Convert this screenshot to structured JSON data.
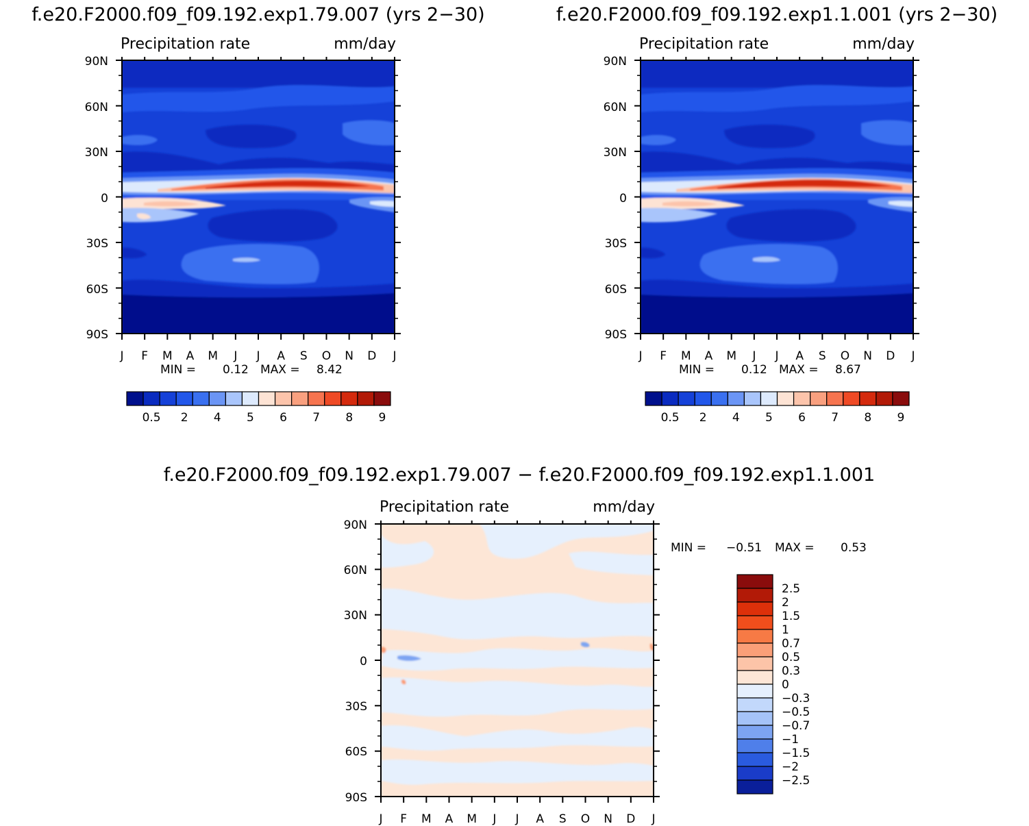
{
  "chart_data": [
    {
      "type": "heatmap",
      "title": "f.e20.F2000.f09_f09.192.exp1.79.007 (yrs 2−30)",
      "variable": "Precipitation rate",
      "units": "mm/day",
      "x_ticks": [
        "J",
        "F",
        "M",
        "A",
        "M",
        "J",
        "J",
        "A",
        "S",
        "O",
        "N",
        "D",
        "J"
      ],
      "y_ticks": [
        "90N",
        "60N",
        "30N",
        "0",
        "30S",
        "60S",
        "90S"
      ],
      "stats": {
        "min_label": "MIN =",
        "min": "0.12",
        "max_label": "MAX =",
        "max": "8.42"
      },
      "colorbar": {
        "orientation": "horizontal",
        "labels": [
          "0.5",
          "2",
          "4",
          "5",
          "6",
          "7",
          "8",
          "9"
        ],
        "colors": [
          "#00108c",
          "#0a2bc0",
          "#1541d8",
          "#2257ea",
          "#3a70f0",
          "#6b95f5",
          "#a9c5fb",
          "#ddeafd",
          "#fde3d4",
          "#fcc4ab",
          "#f9a07f",
          "#f6744f",
          "#ef4a25",
          "#d42a0d",
          "#b21a07",
          "#8a0c0c"
        ]
      }
    },
    {
      "type": "heatmap",
      "title": "f.e20.F2000.f09_f09.192.exp1.1.001 (yrs 2−30)",
      "variable": "Precipitation rate",
      "units": "mm/day",
      "x_ticks": [
        "J",
        "F",
        "M",
        "A",
        "M",
        "J",
        "J",
        "A",
        "S",
        "O",
        "N",
        "D",
        "J"
      ],
      "y_ticks": [
        "90N",
        "60N",
        "30N",
        "0",
        "30S",
        "60S",
        "90S"
      ],
      "stats": {
        "min_label": "MIN =",
        "min": "0.12",
        "max_label": "MAX =",
        "max": "8.67"
      },
      "colorbar": {
        "orientation": "horizontal",
        "labels": [
          "0.5",
          "2",
          "4",
          "5",
          "6",
          "7",
          "8",
          "9"
        ],
        "colors": [
          "#00108c",
          "#0a2bc0",
          "#1541d8",
          "#2257ea",
          "#3a70f0",
          "#6b95f5",
          "#a9c5fb",
          "#ddeafd",
          "#fde3d4",
          "#fcc4ab",
          "#f9a07f",
          "#f6744f",
          "#ef4a25",
          "#d42a0d",
          "#b21a07",
          "#8a0c0c"
        ]
      }
    },
    {
      "type": "heatmap",
      "title": "f.e20.F2000.f09_f09.192.exp1.79.007 − f.e20.F2000.f09_f09.192.exp1.1.001",
      "variable": "Precipitation rate",
      "units": "mm/day",
      "x_ticks": [
        "J",
        "F",
        "M",
        "A",
        "M",
        "J",
        "J",
        "A",
        "S",
        "O",
        "N",
        "D",
        "J"
      ],
      "y_ticks": [
        "90N",
        "60N",
        "30N",
        "0",
        "30S",
        "60S",
        "90S"
      ],
      "stats": {
        "min_label": "MIN =",
        "min": "−0.51",
        "max_label": "MAX =",
        "max": "0.53"
      },
      "colorbar": {
        "orientation": "vertical",
        "labels": [
          "2.5",
          "2",
          "1.5",
          "1",
          "0.7",
          "0.5",
          "0.3",
          "0",
          "−0.3",
          "−0.5",
          "−0.7",
          "−1",
          "−1.5",
          "−2",
          "−2.5"
        ],
        "colors": [
          "#8a0c0c",
          "#b21a07",
          "#dd300a",
          "#f04e1c",
          "#f77a45",
          "#fa9f78",
          "#fcc4a8",
          "#fde6d6",
          "#e6f0fd",
          "#c2d8fb",
          "#a5c3f8",
          "#7da4f2",
          "#4f7fea",
          "#2a5bdf",
          "#1a3cc8",
          "#0a1f9a"
        ]
      }
    }
  ]
}
